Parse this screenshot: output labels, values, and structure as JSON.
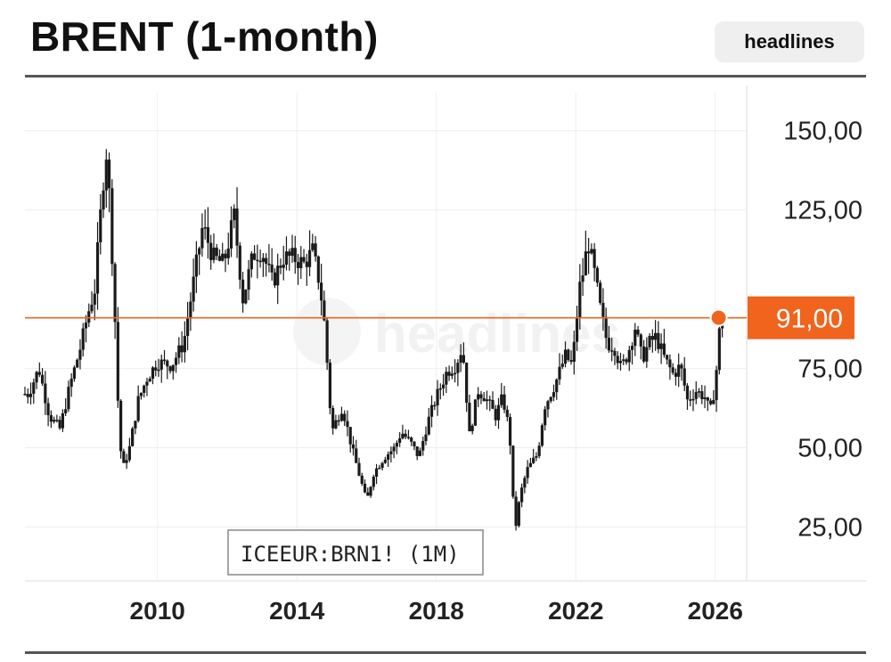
{
  "header": {
    "title": "BRENT (1-month)",
    "badge_label": "headlines"
  },
  "colors": {
    "candles": "#1a1a1a",
    "price_line": "#f0641e",
    "price_tag_bg": "#f0641e",
    "price_tag_text": "#ffffff",
    "grid": "#eeeeee",
    "axis_text": "#222222",
    "watermark": "#f2f2f2"
  },
  "chart_data": {
    "type": "candlestick",
    "symbol_label": "ICEEUR:BRN1! (1M)",
    "watermark": "headlines",
    "x_ticks": [
      "2010",
      "2014",
      "2018",
      "2022",
      "2026"
    ],
    "y_ticks": [
      "150,00",
      "125,00",
      "75,00",
      "50,00",
      "25,00"
    ],
    "ylim": [
      8,
      162
    ],
    "xlim": [
      2006.2,
      2026.9
    ],
    "grid": true,
    "current_price": 91.0,
    "current_price_label": "91,00",
    "series": [
      {
        "values": [
          [
            2006.3,
            67
          ],
          [
            2006.6,
            75
          ],
          [
            2006.9,
            60
          ],
          [
            2007.2,
            56
          ],
          [
            2007.5,
            70
          ],
          [
            2007.8,
            82
          ],
          [
            2008.0,
            92
          ],
          [
            2008.2,
            100
          ],
          [
            2008.45,
            135
          ],
          [
            2008.55,
            145
          ],
          [
            2008.75,
            100
          ],
          [
            2008.9,
            55
          ],
          [
            2009.0,
            43
          ],
          [
            2009.2,
            50
          ],
          [
            2009.45,
            65
          ],
          [
            2009.7,
            72
          ],
          [
            2010.0,
            77
          ],
          [
            2010.4,
            76
          ],
          [
            2010.75,
            83
          ],
          [
            2011.0,
            100
          ],
          [
            2011.3,
            120
          ],
          [
            2011.6,
            110
          ],
          [
            2011.9,
            108
          ],
          [
            2012.2,
            123
          ],
          [
            2012.45,
            97
          ],
          [
            2012.75,
            111
          ],
          [
            2013.0,
            112
          ],
          [
            2013.3,
            102
          ],
          [
            2013.6,
            110
          ],
          [
            2013.9,
            110
          ],
          [
            2014.2,
            108
          ],
          [
            2014.45,
            112
          ],
          [
            2014.65,
            102
          ],
          [
            2014.8,
            88
          ],
          [
            2015.0,
            55
          ],
          [
            2015.3,
            63
          ],
          [
            2015.6,
            49
          ],
          [
            2015.9,
            37
          ],
          [
            2016.0,
            33
          ],
          [
            2016.2,
            42
          ],
          [
            2016.5,
            47
          ],
          [
            2016.8,
            50
          ],
          [
            2017.0,
            55
          ],
          [
            2017.3,
            51
          ],
          [
            2017.5,
            47
          ],
          [
            2017.75,
            58
          ],
          [
            2018.0,
            66
          ],
          [
            2018.3,
            74
          ],
          [
            2018.55,
            76
          ],
          [
            2018.75,
            82
          ],
          [
            2018.95,
            54
          ],
          [
            2019.2,
            68
          ],
          [
            2019.4,
            66
          ],
          [
            2019.7,
            60
          ],
          [
            2019.9,
            66
          ],
          [
            2020.1,
            55
          ],
          [
            2020.25,
            23
          ],
          [
            2020.4,
            35
          ],
          [
            2020.6,
            43
          ],
          [
            2020.9,
            48
          ],
          [
            2021.1,
            63
          ],
          [
            2021.4,
            70
          ],
          [
            2021.7,
            79
          ],
          [
            2021.9,
            76
          ],
          [
            2022.1,
            100
          ],
          [
            2022.2,
            105
          ],
          [
            2022.35,
            115
          ],
          [
            2022.55,
            104
          ],
          [
            2022.7,
            94
          ],
          [
            2022.9,
            83
          ],
          [
            2023.1,
            82
          ],
          [
            2023.3,
            75
          ],
          [
            2023.5,
            80
          ],
          [
            2023.7,
            88
          ],
          [
            2023.9,
            78
          ],
          [
            2024.1,
            83
          ],
          [
            2024.3,
            85
          ],
          [
            2024.55,
            78
          ],
          [
            2024.8,
            73
          ],
          [
            2025.0,
            76
          ],
          [
            2025.2,
            65
          ],
          [
            2025.45,
            68
          ],
          [
            2025.7,
            66
          ],
          [
            2025.85,
            61
          ],
          [
            2026.0,
            70
          ],
          [
            2026.15,
            91
          ]
        ]
      }
    ]
  }
}
